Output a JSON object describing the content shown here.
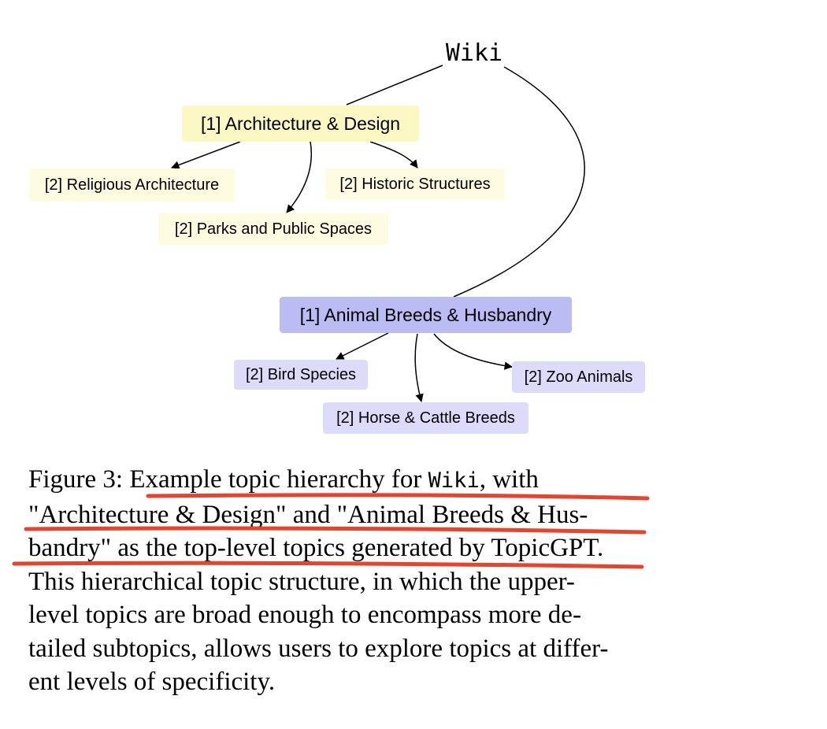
{
  "diagram": {
    "root": "Wiki",
    "topics": [
      {
        "label": "[1] Architecture & Design",
        "color": "#fcf8c4",
        "subtopic_color": "#fdfbe0",
        "subtopics": [
          "[2] Religious Architecture",
          "[2] Historic Structures",
          "[2] Parks and Public Spaces"
        ]
      },
      {
        "label": "[1] Animal Breeds & Husbandry",
        "color": "#bcbcf4",
        "subtopic_color": "#dcdcfa",
        "subtopics": [
          "[2] Bird Species",
          "[2] Zoo Animals",
          "[2] Horse & Cattle Breeds"
        ]
      }
    ]
  },
  "caption": {
    "lines": [
      {
        "parts": [
          {
            "text": "Figure 3:  Example topic hierarchy for "
          },
          {
            "text": "Wiki",
            "mono": true
          },
          {
            "text": ", with"
          }
        ]
      },
      {
        "parts": [
          {
            "text": "\"Architecture & Design\" and \"Animal Breeds & Hus-"
          }
        ]
      },
      {
        "parts": [
          {
            "text": "bandry\" as the top-level topics generated by TopicGPT."
          }
        ]
      },
      {
        "parts": [
          {
            "text": "This hierarchical topic structure, in which the upper-"
          }
        ]
      },
      {
        "parts": [
          {
            "text": "level topics are broad enough to encompass more de-"
          }
        ]
      },
      {
        "parts": [
          {
            "text": "tailed subtopics, allows users to explore topics at differ-"
          }
        ]
      },
      {
        "parts": [
          {
            "text": "ent levels of specificity."
          }
        ]
      }
    ],
    "highlight_color": "#e8432d"
  }
}
